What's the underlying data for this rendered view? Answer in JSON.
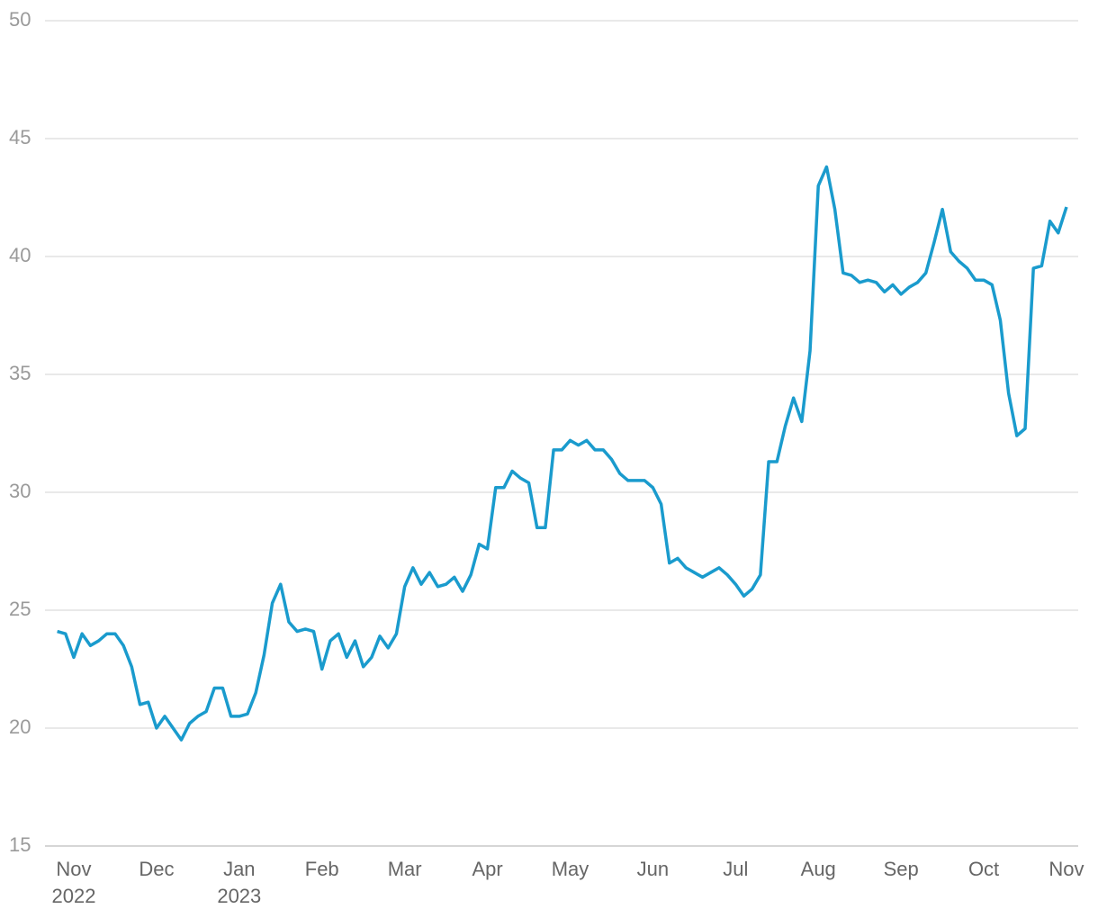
{
  "chart_data": {
    "type": "line",
    "categories": [
      null,
      null,
      "Nov\n2022",
      null,
      null,
      null,
      null,
      null,
      null,
      null,
      null,
      null,
      "Dec",
      null,
      null,
      null,
      null,
      null,
      null,
      null,
      null,
      null,
      "Jan\n2023",
      null,
      null,
      null,
      null,
      null,
      null,
      null,
      null,
      null,
      "Feb",
      null,
      null,
      null,
      null,
      null,
      null,
      null,
      null,
      null,
      "Mar",
      null,
      null,
      null,
      null,
      null,
      null,
      null,
      null,
      null,
      "Apr",
      null,
      null,
      null,
      null,
      null,
      null,
      null,
      null,
      null,
      "May",
      null,
      null,
      null,
      null,
      null,
      null,
      null,
      null,
      null,
      "Jun",
      null,
      null,
      null,
      null,
      null,
      null,
      null,
      null,
      null,
      "Jul",
      null,
      null,
      null,
      null,
      null,
      null,
      null,
      null,
      null,
      "Aug",
      null,
      null,
      null,
      null,
      null,
      null,
      null,
      null,
      null,
      "Sep",
      null,
      null,
      null,
      null,
      null,
      null,
      null,
      null,
      null,
      "Oct",
      null,
      null,
      null,
      null,
      null,
      null,
      null,
      null,
      null,
      "Nov"
    ],
    "values": [
      24.1,
      24.0,
      23.0,
      24.0,
      23.5,
      23.7,
      24.0,
      24.0,
      23.5,
      22.6,
      21.0,
      21.1,
      20.0,
      20.5,
      20.0,
      19.5,
      20.2,
      20.5,
      20.7,
      21.7,
      21.7,
      20.5,
      20.5,
      20.6,
      21.5,
      23.1,
      25.3,
      26.1,
      24.5,
      24.1,
      24.2,
      24.1,
      22.5,
      23.7,
      24.0,
      23.0,
      23.7,
      22.6,
      23.0,
      23.9,
      23.4,
      24.0,
      26.0,
      26.8,
      26.1,
      26.6,
      26.0,
      26.1,
      26.4,
      25.8,
      26.5,
      27.8,
      27.6,
      30.2,
      30.2,
      30.9,
      30.6,
      30.4,
      28.5,
      28.5,
      31.8,
      31.8,
      32.2,
      32.0,
      32.2,
      31.8,
      31.8,
      31.4,
      30.8,
      30.5,
      30.5,
      30.5,
      30.2,
      29.5,
      27.0,
      27.2,
      26.8,
      26.6,
      26.4,
      26.6,
      26.8,
      26.5,
      26.1,
      25.6,
      25.9,
      26.5,
      31.3,
      31.3,
      32.8,
      34.0,
      33.0,
      36.0,
      43.0,
      43.8,
      42.0,
      39.3,
      39.2,
      38.9,
      39.0,
      38.9,
      38.5,
      38.8,
      38.4,
      38.7,
      38.9,
      39.3,
      40.6,
      42.0,
      40.2,
      39.8,
      39.5,
      39.0,
      39.0,
      38.8,
      37.3,
      34.2,
      32.4,
      32.7,
      39.5,
      39.6,
      41.5,
      41.0,
      42.1
    ],
    "color": "#1a9bcd",
    "ylim": [
      15,
      50
    ],
    "yticks": [
      15,
      20,
      25,
      30,
      35,
      40,
      45,
      50
    ],
    "grid": true
  }
}
